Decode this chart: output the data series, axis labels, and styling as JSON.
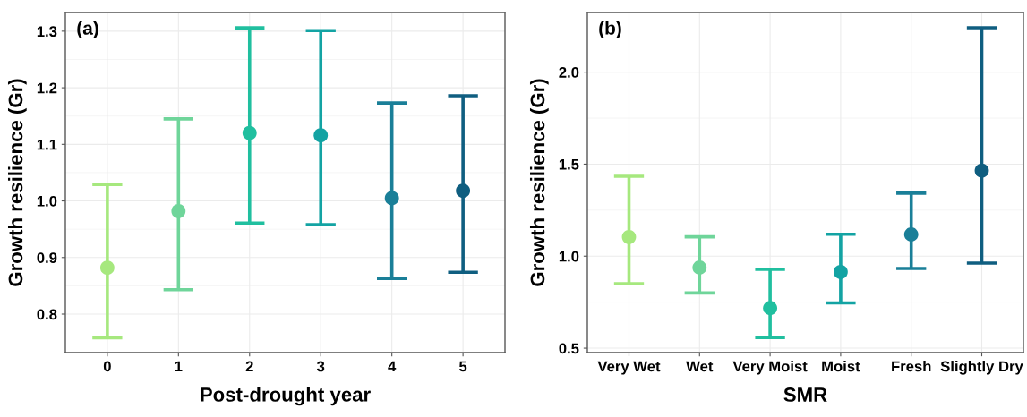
{
  "chart_data": [
    {
      "type": "scatter",
      "title": "(a)",
      "xlabel": "Post-drought year",
      "ylabel": "Growth resilience (Gr)",
      "categories": [
        "0",
        "1",
        "2",
        "3",
        "4",
        "5"
      ],
      "values": [
        0.882,
        0.982,
        1.12,
        1.116,
        1.005,
        1.018
      ],
      "errors": [
        [
          0.758,
          1.029
        ],
        [
          0.843,
          1.145
        ],
        [
          0.961,
          1.306
        ],
        [
          0.958,
          1.301
        ],
        [
          0.863,
          1.173
        ],
        [
          0.874,
          1.186
        ]
      ],
      "colors": [
        "#a6e87e",
        "#6fd59a",
        "#20bf9f",
        "#13a3a3",
        "#1a7f98",
        "#0f5e80"
      ],
      "ylim": [
        0.732,
        1.333
      ],
      "yticks": [
        {
          "value": 0.8,
          "label": "0.8"
        },
        {
          "value": 0.9,
          "label": "0.9"
        },
        {
          "value": 1.0,
          "label": "1.0"
        },
        {
          "value": 1.1,
          "label": "1.1"
        },
        {
          "value": 1.2,
          "label": "1.2"
        },
        {
          "value": 1.3,
          "label": "1.3"
        }
      ],
      "grid": true,
      "marker": "circle",
      "legend": false
    },
    {
      "type": "scatter",
      "title": "(b)",
      "xlabel": "SMR",
      "ylabel": "Growth resilience (Gr)",
      "categories": [
        "Very Wet",
        "Wet",
        "Very Moist",
        "Moist",
        "Fresh",
        "Slightly Dry"
      ],
      "values": [
        1.104,
        0.938,
        0.718,
        0.914,
        1.118,
        1.465
      ],
      "errors": [
        [
          0.85,
          1.434
        ],
        [
          0.8,
          1.105
        ],
        [
          0.558,
          0.929
        ],
        [
          0.746,
          1.119
        ],
        [
          0.933,
          1.342
        ],
        [
          0.962,
          2.241
        ]
      ],
      "colors": [
        "#a6e87e",
        "#6fd59a",
        "#20bf9f",
        "#13a3a3",
        "#1a7f98",
        "#0f5e80"
      ],
      "ylim": [
        0.476,
        2.324
      ],
      "yticks": [
        {
          "value": 0.5,
          "label": "0.5"
        },
        {
          "value": 1.0,
          "label": "1.0"
        },
        {
          "value": 1.5,
          "label": "1.5"
        },
        {
          "value": 2.0,
          "label": "2.0"
        }
      ],
      "grid": true,
      "marker": "circle",
      "legend": false
    }
  ]
}
